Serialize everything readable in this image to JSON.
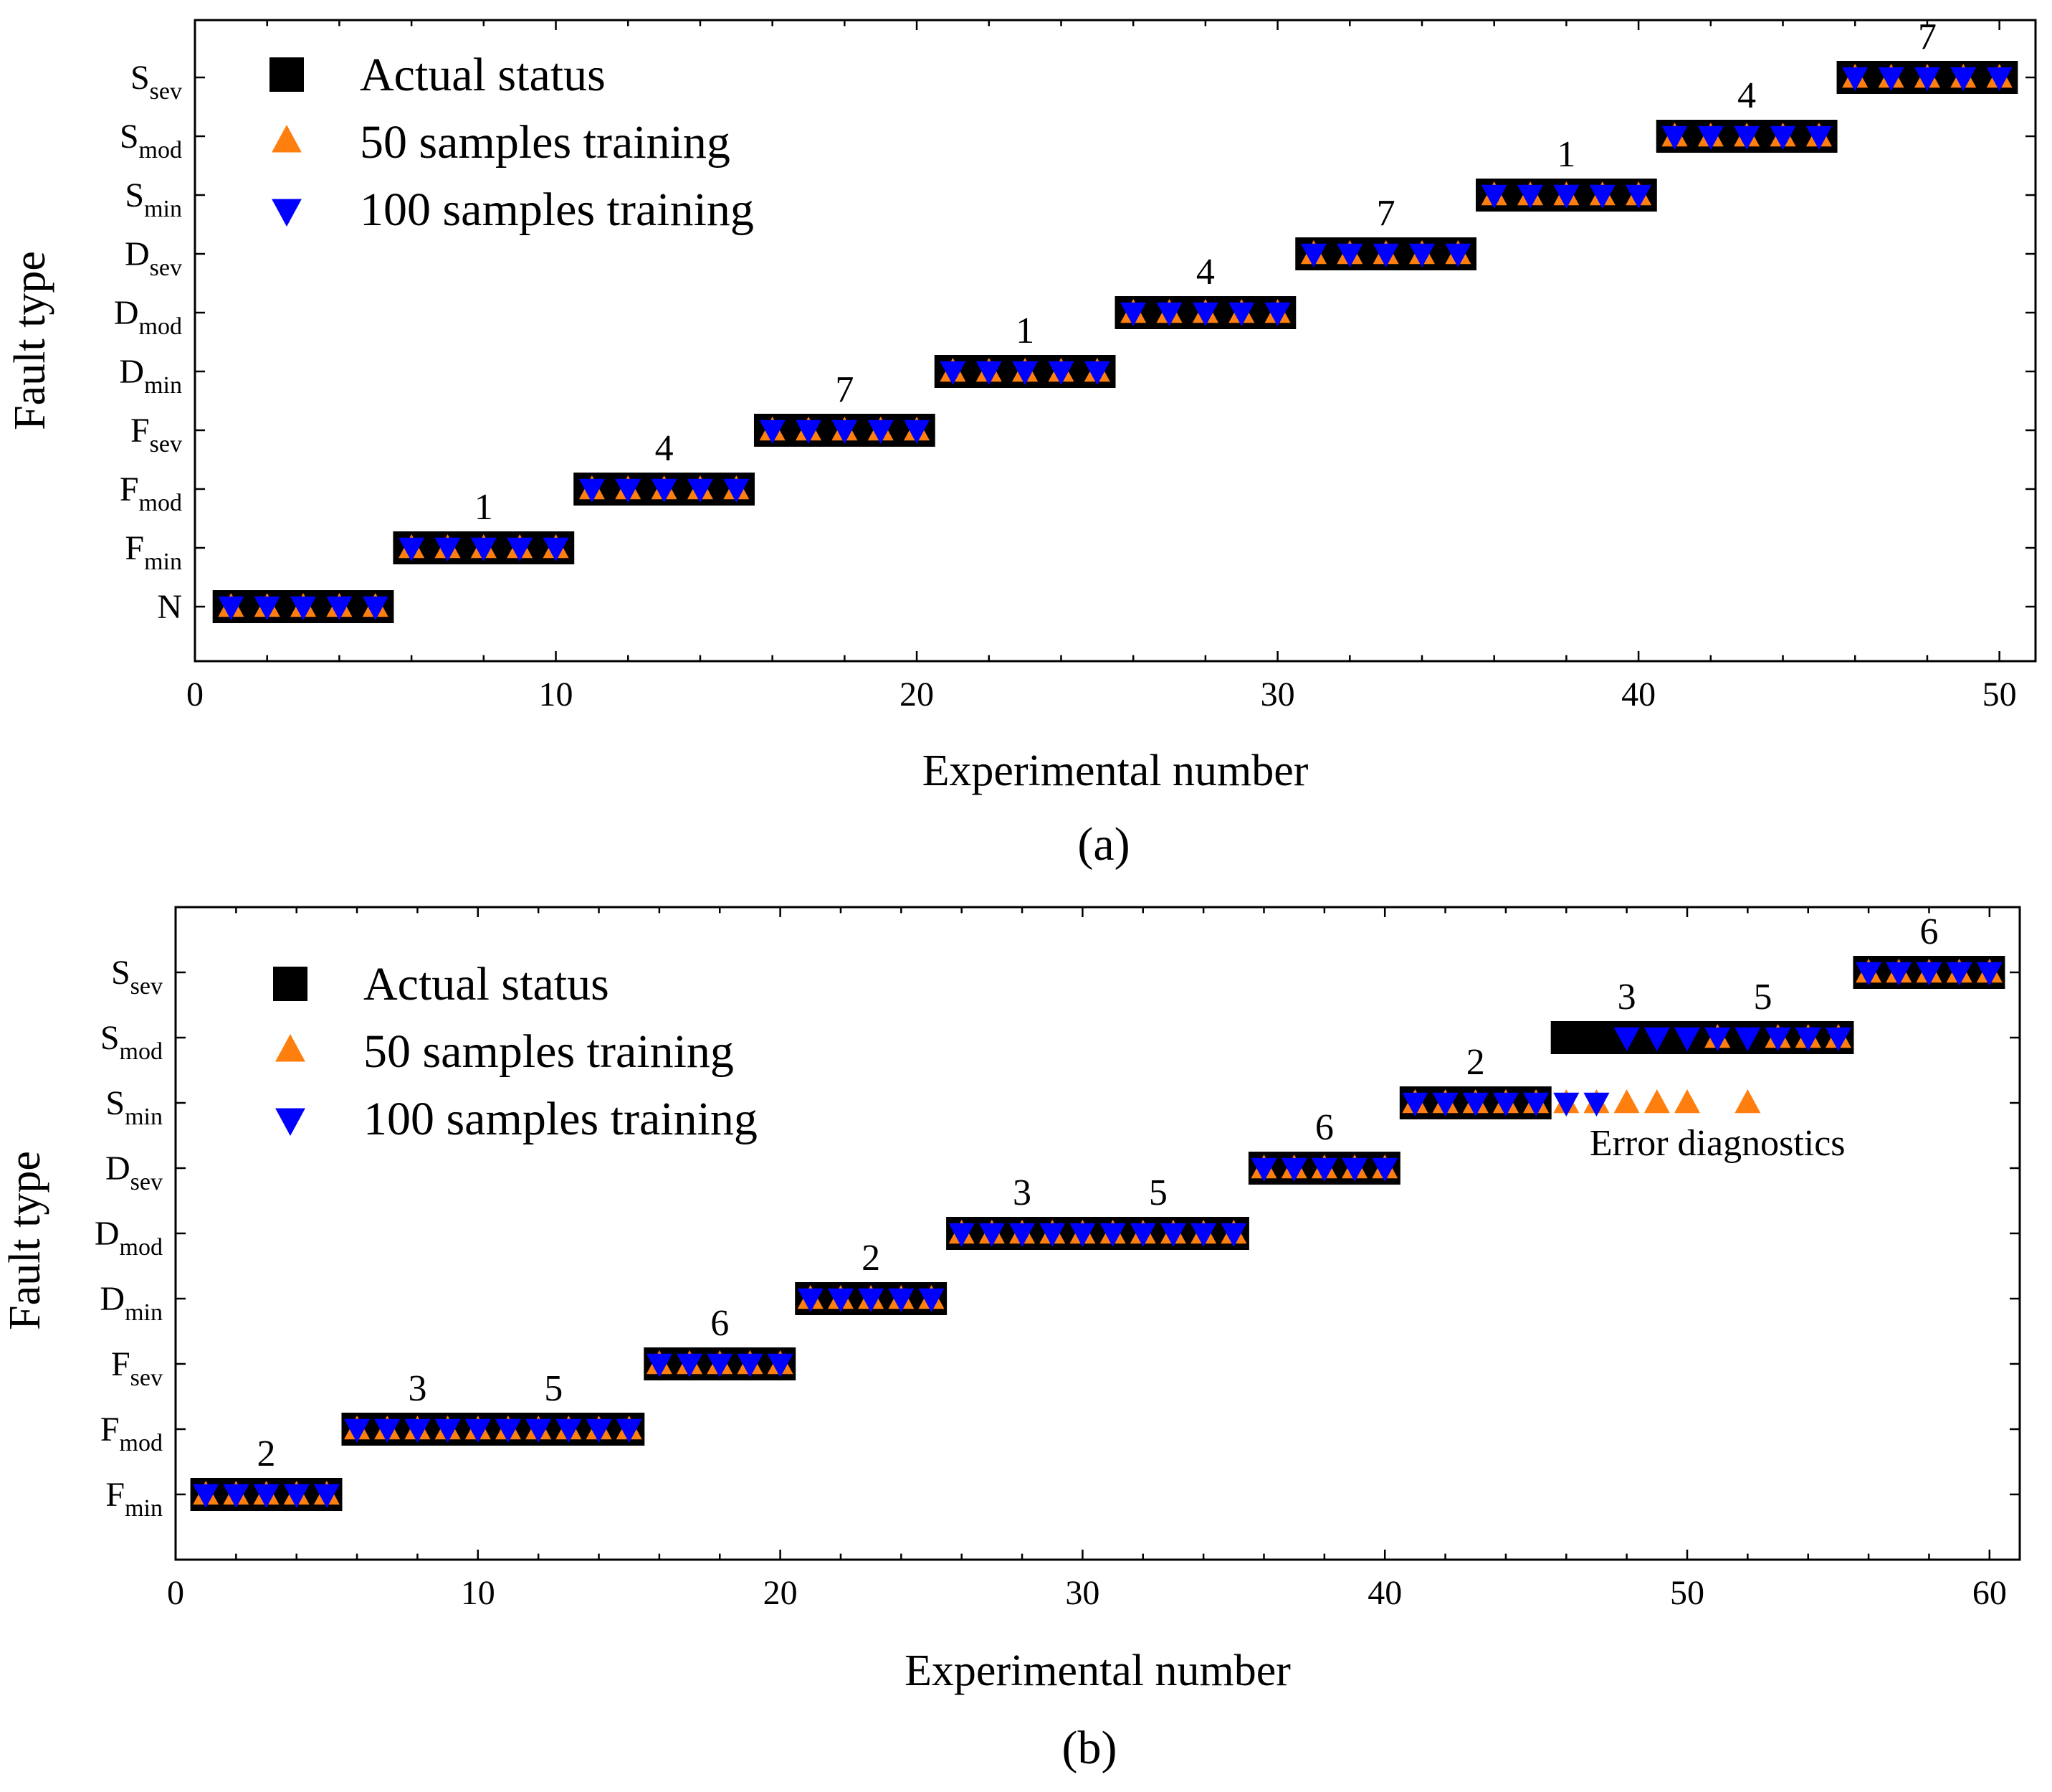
{
  "chart_data": [
    {
      "type": "scatter",
      "panel_label": "(a)",
      "xlabel": "Experimental number",
      "ylabel": "Fault type",
      "xlim": [
        0,
        51
      ],
      "xticks": [
        0,
        10,
        20,
        30,
        40,
        50
      ],
      "categories": [
        {
          "main": "N",
          "sub": ""
        },
        {
          "main": "F",
          "sub": "min"
        },
        {
          "main": "F",
          "sub": "mod"
        },
        {
          "main": "F",
          "sub": "sev"
        },
        {
          "main": "D",
          "sub": "min"
        },
        {
          "main": "D",
          "sub": "mod"
        },
        {
          "main": "D",
          "sub": "sev"
        },
        {
          "main": "S",
          "sub": "min"
        },
        {
          "main": "S",
          "sub": "mod"
        },
        {
          "main": "S",
          "sub": "sev"
        }
      ],
      "legend": [
        {
          "label": "Actual status",
          "marker": "square",
          "color": "#000000"
        },
        {
          "label": "50 samples training",
          "marker": "triangle-up",
          "color": "#ff7f0e"
        },
        {
          "label": "100 samples training",
          "marker": "triangle-down",
          "color": "#0000ff"
        }
      ],
      "legend_position": "top-left",
      "series": [
        {
          "name": "Actual status",
          "x": [
            1,
            2,
            3,
            4,
            5,
            6,
            7,
            8,
            9,
            10,
            11,
            12,
            13,
            14,
            15,
            16,
            17,
            18,
            19,
            20,
            21,
            22,
            23,
            24,
            25,
            26,
            27,
            28,
            29,
            30,
            31,
            32,
            33,
            34,
            35,
            36,
            37,
            38,
            39,
            40,
            41,
            42,
            43,
            44,
            45,
            46,
            47,
            48,
            49,
            50
          ],
          "y": [
            0,
            0,
            0,
            0,
            0,
            1,
            1,
            1,
            1,
            1,
            2,
            2,
            2,
            2,
            2,
            3,
            3,
            3,
            3,
            3,
            4,
            4,
            4,
            4,
            4,
            5,
            5,
            5,
            5,
            5,
            6,
            6,
            6,
            6,
            6,
            7,
            7,
            7,
            7,
            7,
            8,
            8,
            8,
            8,
            8,
            9,
            9,
            9,
            9,
            9
          ]
        },
        {
          "name": "50 samples training",
          "x": [
            1,
            2,
            3,
            4,
            5,
            6,
            7,
            8,
            9,
            10,
            11,
            12,
            13,
            14,
            15,
            16,
            17,
            18,
            19,
            20,
            21,
            22,
            23,
            24,
            25,
            26,
            27,
            28,
            29,
            30,
            31,
            32,
            33,
            34,
            35,
            36,
            37,
            38,
            39,
            40,
            41,
            42,
            43,
            44,
            45,
            46,
            47,
            48,
            49,
            50
          ],
          "y": [
            0,
            0,
            0,
            0,
            0,
            1,
            1,
            1,
            1,
            1,
            2,
            2,
            2,
            2,
            2,
            3,
            3,
            3,
            3,
            3,
            4,
            4,
            4,
            4,
            4,
            5,
            5,
            5,
            5,
            5,
            6,
            6,
            6,
            6,
            6,
            7,
            7,
            7,
            7,
            7,
            8,
            8,
            8,
            8,
            8,
            9,
            9,
            9,
            9,
            9
          ]
        },
        {
          "name": "100 samples training",
          "x": [
            1,
            2,
            3,
            4,
            5,
            6,
            7,
            8,
            9,
            10,
            11,
            12,
            13,
            14,
            15,
            16,
            17,
            18,
            19,
            20,
            21,
            22,
            23,
            24,
            25,
            26,
            27,
            28,
            29,
            30,
            31,
            32,
            33,
            34,
            35,
            36,
            37,
            38,
            39,
            40,
            41,
            42,
            43,
            44,
            45,
            46,
            47,
            48,
            49,
            50
          ],
          "y": [
            0,
            0,
            0,
            0,
            0,
            1,
            1,
            1,
            1,
            1,
            2,
            2,
            2,
            2,
            2,
            3,
            3,
            3,
            3,
            3,
            4,
            4,
            4,
            4,
            4,
            5,
            5,
            5,
            5,
            5,
            6,
            6,
            6,
            6,
            6,
            7,
            7,
            7,
            7,
            7,
            8,
            8,
            8,
            8,
            8,
            9,
            9,
            9,
            9,
            9
          ]
        }
      ],
      "annotations": [
        {
          "text": "1",
          "x": 8,
          "y": 1
        },
        {
          "text": "4",
          "x": 13,
          "y": 2
        },
        {
          "text": "7",
          "x": 18,
          "y": 3
        },
        {
          "text": "1",
          "x": 23,
          "y": 4
        },
        {
          "text": "4",
          "x": 28,
          "y": 5
        },
        {
          "text": "7",
          "x": 33,
          "y": 6
        },
        {
          "text": "1",
          "x": 38,
          "y": 7
        },
        {
          "text": "4",
          "x": 43,
          "y": 8
        },
        {
          "text": "7",
          "x": 48,
          "y": 9
        }
      ]
    },
    {
      "type": "scatter",
      "panel_label": "(b)",
      "xlabel": "Experimental number",
      "ylabel": "Fault type",
      "xlim": [
        0,
        61
      ],
      "xticks": [
        0,
        10,
        20,
        30,
        40,
        50,
        60
      ],
      "categories": [
        {
          "main": "F",
          "sub": "min"
        },
        {
          "main": "F",
          "sub": "mod"
        },
        {
          "main": "F",
          "sub": "sev"
        },
        {
          "main": "D",
          "sub": "min"
        },
        {
          "main": "D",
          "sub": "mod"
        },
        {
          "main": "D",
          "sub": "sev"
        },
        {
          "main": "S",
          "sub": "min"
        },
        {
          "main": "S",
          "sub": "mod"
        },
        {
          "main": "S",
          "sub": "sev"
        }
      ],
      "legend": [
        {
          "label": "Actual status",
          "marker": "square",
          "color": "#000000"
        },
        {
          "label": "50 samples training",
          "marker": "triangle-up",
          "color": "#ff7f0e"
        },
        {
          "label": "100 samples training",
          "marker": "triangle-down",
          "color": "#0000ff"
        }
      ],
      "legend_position": "top-left",
      "series": [
        {
          "name": "Actual status",
          "x": [
            1,
            2,
            3,
            4,
            5,
            6,
            7,
            8,
            9,
            10,
            11,
            12,
            13,
            14,
            15,
            16,
            17,
            18,
            19,
            20,
            21,
            22,
            23,
            24,
            25,
            26,
            27,
            28,
            29,
            30,
            31,
            32,
            33,
            34,
            35,
            36,
            37,
            38,
            39,
            40,
            41,
            42,
            43,
            44,
            45,
            46,
            47,
            48,
            49,
            50,
            51,
            52,
            53,
            54,
            55,
            56,
            57,
            58,
            59,
            60
          ],
          "y": [
            0,
            0,
            0,
            0,
            0,
            1,
            1,
            1,
            1,
            1,
            1,
            1,
            1,
            1,
            1,
            2,
            2,
            2,
            2,
            2,
            3,
            3,
            3,
            3,
            3,
            4,
            4,
            4,
            4,
            4,
            4,
            4,
            4,
            4,
            4,
            5,
            5,
            5,
            5,
            5,
            6,
            6,
            6,
            6,
            6,
            7,
            7,
            7,
            7,
            7,
            7,
            7,
            7,
            7,
            7,
            8,
            8,
            8,
            8,
            8
          ]
        },
        {
          "name": "50 samples training",
          "x": [
            1,
            2,
            3,
            4,
            5,
            6,
            7,
            8,
            9,
            10,
            11,
            12,
            13,
            14,
            15,
            16,
            17,
            18,
            19,
            20,
            21,
            22,
            23,
            24,
            25,
            26,
            27,
            28,
            29,
            30,
            31,
            32,
            33,
            34,
            35,
            36,
            37,
            38,
            39,
            40,
            41,
            42,
            43,
            44,
            45,
            46,
            47,
            48,
            49,
            50,
            51,
            52,
            53,
            54,
            55,
            56,
            57,
            58,
            59,
            60
          ],
          "y": [
            0,
            0,
            0,
            0,
            0,
            1,
            1,
            1,
            1,
            1,
            1,
            1,
            1,
            1,
            1,
            2,
            2,
            2,
            2,
            2,
            3,
            3,
            3,
            3,
            3,
            4,
            4,
            4,
            4,
            4,
            4,
            4,
            4,
            4,
            4,
            5,
            5,
            5,
            5,
            5,
            6,
            6,
            6,
            6,
            6,
            6,
            6,
            6,
            6,
            6,
            7,
            6,
            7,
            7,
            7,
            8,
            8,
            8,
            8,
            8
          ]
        },
        {
          "name": "100 samples training",
          "x": [
            1,
            2,
            3,
            4,
            5,
            6,
            7,
            8,
            9,
            10,
            11,
            12,
            13,
            14,
            15,
            16,
            17,
            18,
            19,
            20,
            21,
            22,
            23,
            24,
            25,
            26,
            27,
            28,
            29,
            30,
            31,
            32,
            33,
            34,
            35,
            36,
            37,
            38,
            39,
            40,
            41,
            42,
            43,
            44,
            45,
            46,
            47,
            48,
            49,
            50,
            51,
            52,
            53,
            54,
            55,
            56,
            57,
            58,
            59,
            60
          ],
          "y": [
            0,
            0,
            0,
            0,
            0,
            1,
            1,
            1,
            1,
            1,
            1,
            1,
            1,
            1,
            1,
            2,
            2,
            2,
            2,
            2,
            3,
            3,
            3,
            3,
            3,
            4,
            4,
            4,
            4,
            4,
            4,
            4,
            4,
            4,
            4,
            5,
            5,
            5,
            5,
            5,
            6,
            6,
            6,
            6,
            6,
            6,
            6,
            7,
            7,
            7,
            7,
            7,
            7,
            7,
            7,
            8,
            8,
            8,
            8,
            8
          ]
        }
      ],
      "annotations": [
        {
          "text": "2",
          "x": 3,
          "y": 0
        },
        {
          "text": "3",
          "x": 8,
          "y": 1
        },
        {
          "text": "5",
          "x": 12.5,
          "y": 1
        },
        {
          "text": "6",
          "x": 18,
          "y": 2
        },
        {
          "text": "2",
          "x": 23,
          "y": 3
        },
        {
          "text": "3",
          "x": 28,
          "y": 4
        },
        {
          "text": "5",
          "x": 32.5,
          "y": 4
        },
        {
          "text": "6",
          "x": 38,
          "y": 5
        },
        {
          "text": "2",
          "x": 43,
          "y": 6
        },
        {
          "text": "3",
          "x": 48,
          "y": 7
        },
        {
          "text": "5",
          "x": 52.5,
          "y": 7
        },
        {
          "text": "6",
          "x": 58,
          "y": 8
        }
      ],
      "note": {
        "text": "Error diagnostics",
        "x": 51,
        "y": 5
      }
    }
  ]
}
